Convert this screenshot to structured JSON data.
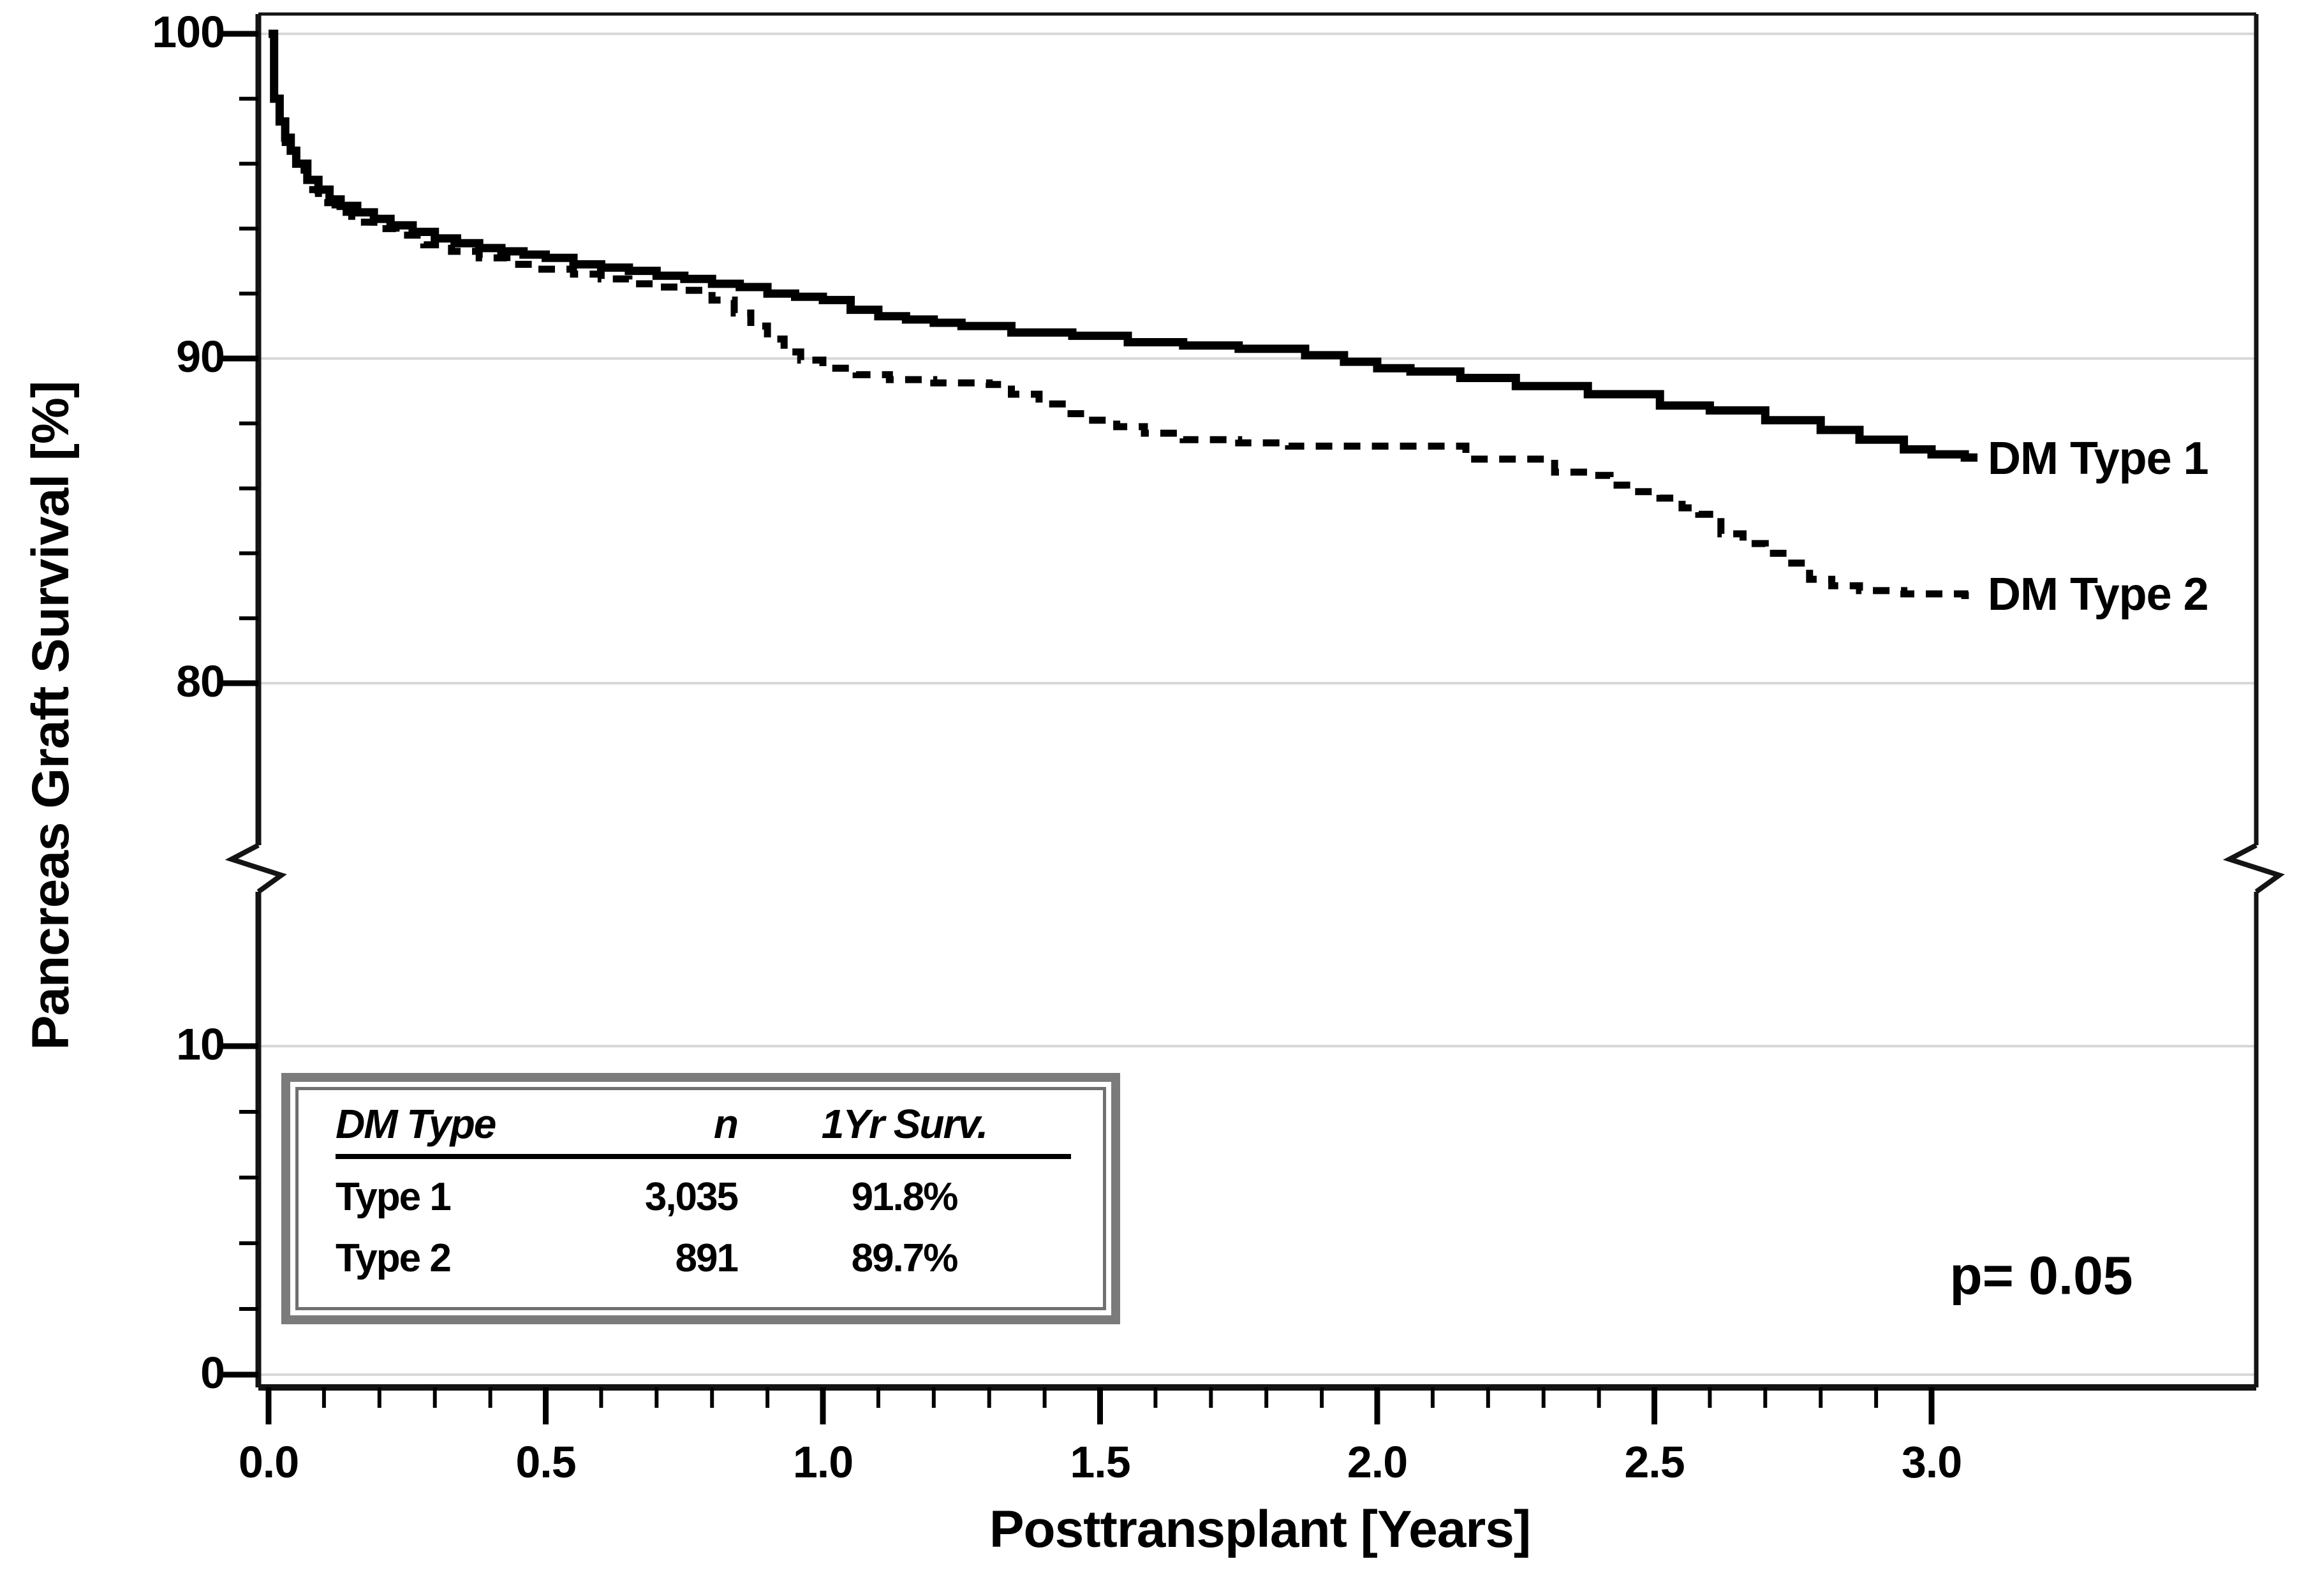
{
  "colors": {
    "ink": "#000000",
    "grid": "#d8d8d8",
    "frame": "#141414",
    "table_border_outer": "#7b7b7b",
    "table_border_inner": "#707070",
    "background": "#ffffff"
  },
  "y_axis": {
    "title": "Pancreas Graft Survival [%]",
    "major_tick_labels": [
      "100",
      "90",
      "80",
      "10",
      "0"
    ],
    "major_tick_values": [
      100,
      90,
      80,
      10,
      0
    ],
    "minor_tick_values": [
      98,
      96,
      94,
      92,
      88,
      86,
      84,
      82,
      8,
      6,
      4,
      2
    ],
    "axis_break": {
      "between_values": [
        80,
        10
      ]
    }
  },
  "x_axis": {
    "title": "Posttransplant [Years]",
    "major_tick_labels": [
      "0.0",
      "0.5",
      "1.0",
      "1.5",
      "2.0",
      "2.5",
      "3.0"
    ],
    "major_tick_values": [
      0,
      0.5,
      1,
      1.5,
      2,
      2.5,
      3
    ],
    "minor_tick_step": 0.1,
    "minor_tick_range": [
      0.1,
      2.9
    ]
  },
  "annotations": {
    "p_value": "p= 0.05"
  },
  "stats_table": {
    "headers": [
      "DM Type",
      "n",
      "1Yr Surv."
    ],
    "rows": [
      [
        "Type 1",
        "3,035",
        "91.8%"
      ],
      [
        "Type 2",
        "891",
        "89.7%"
      ]
    ]
  },
  "chart_data": {
    "type": "line",
    "style": "kaplan-meier-step",
    "title": "",
    "xlabel": "Posttransplant [Years]",
    "ylabel": "Pancreas Graft Survival [%]",
    "xlim": [
      0,
      3.5
    ],
    "ylim_segments": [
      [
        0,
        15
      ],
      [
        75,
        100
      ]
    ],
    "grid": "horizontal-major",
    "legend_position": "curve-end-labels",
    "series": [
      {
        "name": "DM Type 1",
        "line_style": "solid",
        "points": [
          [
            0.0,
            100
          ],
          [
            0.01,
            98.0
          ],
          [
            0.02,
            97.3
          ],
          [
            0.03,
            96.8
          ],
          [
            0.04,
            96.4
          ],
          [
            0.05,
            96.0
          ],
          [
            0.07,
            95.5
          ],
          [
            0.09,
            95.2
          ],
          [
            0.11,
            94.9
          ],
          [
            0.13,
            94.7
          ],
          [
            0.16,
            94.5
          ],
          [
            0.19,
            94.3
          ],
          [
            0.22,
            94.1
          ],
          [
            0.26,
            93.9
          ],
          [
            0.3,
            93.7
          ],
          [
            0.34,
            93.55
          ],
          [
            0.38,
            93.4
          ],
          [
            0.42,
            93.3
          ],
          [
            0.46,
            93.2
          ],
          [
            0.5,
            93.1
          ],
          [
            0.55,
            92.9
          ],
          [
            0.6,
            92.8
          ],
          [
            0.65,
            92.7
          ],
          [
            0.7,
            92.55
          ],
          [
            0.75,
            92.45
          ],
          [
            0.8,
            92.3
          ],
          [
            0.85,
            92.2
          ],
          [
            0.9,
            92.0
          ],
          [
            0.95,
            91.9
          ],
          [
            1.0,
            91.8
          ],
          [
            1.05,
            91.5
          ],
          [
            1.1,
            91.3
          ],
          [
            1.15,
            91.2
          ],
          [
            1.2,
            91.1
          ],
          [
            1.25,
            91.0
          ],
          [
            1.34,
            90.8
          ],
          [
            1.45,
            90.7
          ],
          [
            1.55,
            90.5
          ],
          [
            1.65,
            90.4
          ],
          [
            1.75,
            90.3
          ],
          [
            1.87,
            90.1
          ],
          [
            1.94,
            89.9
          ],
          [
            2.0,
            89.7
          ],
          [
            2.06,
            89.6
          ],
          [
            2.15,
            89.4
          ],
          [
            2.25,
            89.15
          ],
          [
            2.38,
            88.9
          ],
          [
            2.51,
            88.55
          ],
          [
            2.6,
            88.4
          ],
          [
            2.7,
            88.1
          ],
          [
            2.8,
            87.8
          ],
          [
            2.87,
            87.5
          ],
          [
            2.95,
            87.2
          ],
          [
            3.0,
            87.05
          ],
          [
            3.06,
            86.95
          ]
        ]
      },
      {
        "name": "DM Type 2",
        "line_style": "dashed",
        "points": [
          [
            0.0,
            100
          ],
          [
            0.01,
            97.8
          ],
          [
            0.02,
            97.0
          ],
          [
            0.03,
            96.4
          ],
          [
            0.05,
            95.8
          ],
          [
            0.07,
            95.2
          ],
          [
            0.09,
            94.8
          ],
          [
            0.12,
            94.5
          ],
          [
            0.15,
            94.2
          ],
          [
            0.19,
            94.0
          ],
          [
            0.23,
            93.8
          ],
          [
            0.28,
            93.5
          ],
          [
            0.33,
            93.3
          ],
          [
            0.38,
            93.1
          ],
          [
            0.43,
            92.9
          ],
          [
            0.48,
            92.75
          ],
          [
            0.55,
            92.6
          ],
          [
            0.6,
            92.45
          ],
          [
            0.65,
            92.3
          ],
          [
            0.7,
            92.2
          ],
          [
            0.75,
            92.1
          ],
          [
            0.8,
            91.8
          ],
          [
            0.84,
            91.4
          ],
          [
            0.87,
            91.0
          ],
          [
            0.9,
            90.6
          ],
          [
            0.93,
            90.2
          ],
          [
            0.96,
            89.95
          ],
          [
            1.0,
            89.7
          ],
          [
            1.06,
            89.5
          ],
          [
            1.12,
            89.35
          ],
          [
            1.2,
            89.25
          ],
          [
            1.3,
            89.2
          ],
          [
            1.34,
            88.9
          ],
          [
            1.39,
            88.6
          ],
          [
            1.44,
            88.3
          ],
          [
            1.48,
            88.1
          ],
          [
            1.53,
            87.9
          ],
          [
            1.58,
            87.7
          ],
          [
            1.65,
            87.5
          ],
          [
            1.75,
            87.4
          ],
          [
            1.84,
            87.3
          ],
          [
            2.16,
            86.9
          ],
          [
            2.32,
            86.5
          ],
          [
            2.38,
            86.4
          ],
          [
            2.42,
            86.1
          ],
          [
            2.45,
            85.9
          ],
          [
            2.51,
            85.7
          ],
          [
            2.55,
            85.4
          ],
          [
            2.58,
            85.2
          ],
          [
            2.62,
            84.6
          ],
          [
            2.66,
            84.3
          ],
          [
            2.7,
            84.0
          ],
          [
            2.74,
            83.7
          ],
          [
            2.78,
            83.2
          ],
          [
            2.82,
            83.0
          ],
          [
            2.87,
            82.85
          ],
          [
            2.95,
            82.75
          ],
          [
            3.06,
            82.7
          ]
        ]
      }
    ]
  }
}
